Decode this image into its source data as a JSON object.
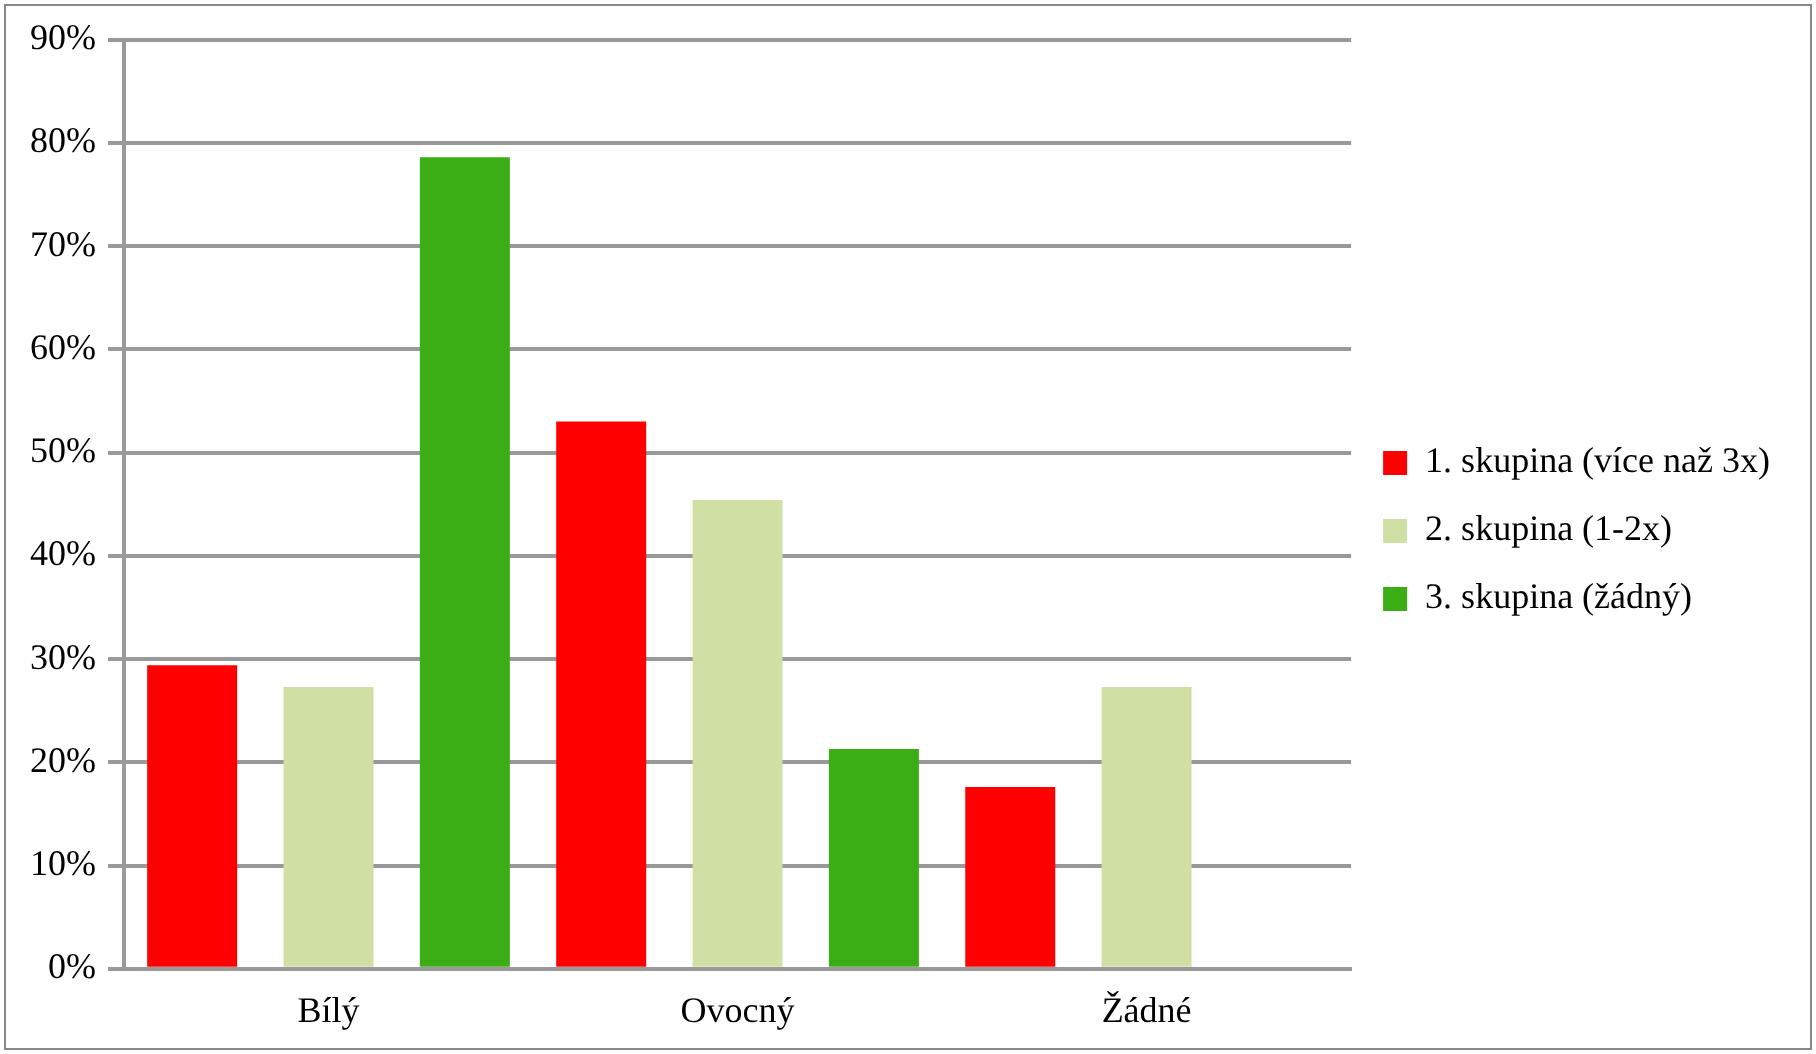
{
  "chart_data": {
    "type": "bar",
    "categories": [
      "Bílý",
      "Ovocný",
      "Žádné"
    ],
    "series": [
      {
        "name": "1. skupina (více naž 3x)",
        "color": "#ff0000",
        "values": [
          29.4,
          53.0,
          17.6
        ]
      },
      {
        "name": "2. skupina (1-2x)",
        "color": "#d0e0a4",
        "values": [
          27.3,
          45.4,
          27.3
        ]
      },
      {
        "name": "3. skupina (žádný)",
        "color": "#3aae14",
        "values": [
          78.6,
          21.3,
          0
        ]
      }
    ],
    "ylim": [
      0,
      90
    ],
    "yticks": [
      {
        "value": 0,
        "label": "0%"
      },
      {
        "value": 10,
        "label": "10%"
      },
      {
        "value": 20,
        "label": "20%"
      },
      {
        "value": 30,
        "label": "30%"
      },
      {
        "value": 40,
        "label": "40%"
      },
      {
        "value": 50,
        "label": "50%"
      },
      {
        "value": 60,
        "label": "60%"
      },
      {
        "value": 70,
        "label": "70%"
      },
      {
        "value": 80,
        "label": "80%"
      },
      {
        "value": 90,
        "label": "90%"
      }
    ],
    "grid": "y",
    "legend": "right"
  }
}
